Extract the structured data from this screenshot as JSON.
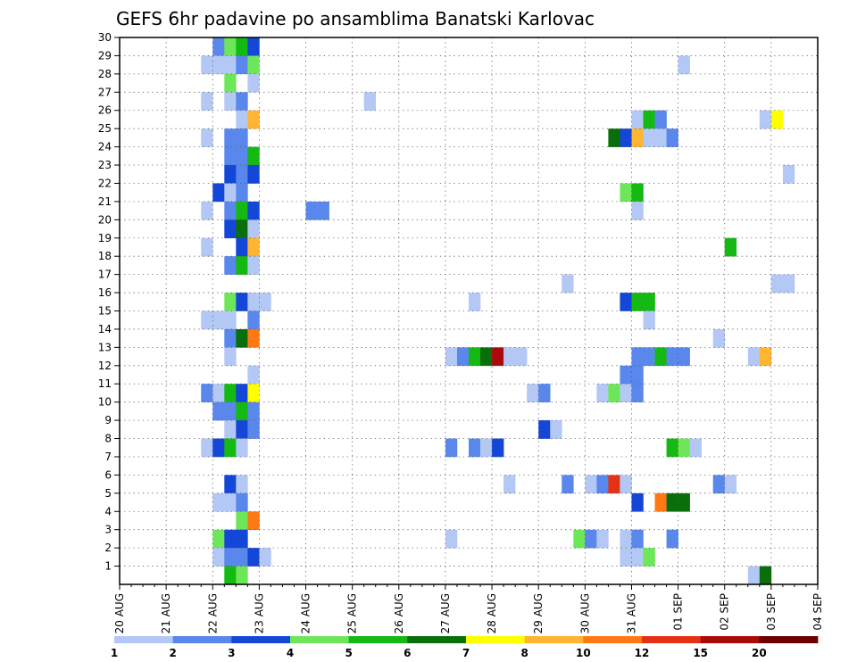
{
  "chart_data": {
    "type": "heatmap",
    "title": "GEFS 6hr padavine po ansamblima Banatski Karlovac",
    "xlabel": "",
    "ylabel": "",
    "x_tick_labels": [
      "20 AUG",
      "21 AUG",
      "22 AUG",
      "23 AUG",
      "24 AUG",
      "25 AUG",
      "26 AUG",
      "27 AUG",
      "28 AUG",
      "29 AUG",
      "30 AUG",
      "31 AUG",
      "01 SEP",
      "02 SEP",
      "03 SEP",
      "04 SEP"
    ],
    "y_tick_labels": [
      "1",
      "2",
      "3",
      "4",
      "5",
      "6",
      "7",
      "8",
      "9",
      "10",
      "11",
      "12",
      "13",
      "14",
      "15",
      "16",
      "17",
      "18",
      "19",
      "20",
      "21",
      "22",
      "23",
      "24",
      "25",
      "26",
      "27",
      "28",
      "29",
      "30"
    ],
    "x_steps_per_day": 4,
    "grid": true,
    "legend": "bottom",
    "color_levels": [
      {
        "label": "1",
        "color": "#b4c8f5"
      },
      {
        "label": "2",
        "color": "#5a87eb"
      },
      {
        "label": "3",
        "color": "#1446d7"
      },
      {
        "label": "4",
        "color": "#6ee65a"
      },
      {
        "label": "5",
        "color": "#14b914"
      },
      {
        "label": "6",
        "color": "#0a6e0a"
      },
      {
        "label": "7",
        "color": "#ffff00"
      },
      {
        "label": "8",
        "color": "#ffb432"
      },
      {
        "label": "10",
        "color": "#ff7814"
      },
      {
        "label": "12",
        "color": "#e63214"
      },
      {
        "label": "15",
        "color": "#aa0a0a"
      },
      {
        "label": "20",
        "color": "#6e0000"
      }
    ],
    "cells": [
      [
        30,
        8,
        1
      ],
      [
        30,
        9,
        3
      ],
      [
        30,
        10,
        4
      ],
      [
        30,
        11,
        2
      ],
      [
        29,
        7,
        0
      ],
      [
        29,
        8,
        0
      ],
      [
        29,
        9,
        0
      ],
      [
        29,
        10,
        1
      ],
      [
        29,
        11,
        3
      ],
      [
        29,
        48,
        0
      ],
      [
        28,
        9,
        3
      ],
      [
        28,
        11,
        0
      ],
      [
        27,
        7,
        0
      ],
      [
        27,
        9,
        0
      ],
      [
        27,
        10,
        1
      ],
      [
        27,
        21,
        0
      ],
      [
        26,
        10,
        0
      ],
      [
        26,
        11,
        7
      ],
      [
        26,
        44,
        0
      ],
      [
        26,
        45,
        4
      ],
      [
        26,
        46,
        1
      ],
      [
        26,
        55,
        0
      ],
      [
        26,
        56,
        6
      ],
      [
        25,
        7,
        0
      ],
      [
        25,
        9,
        1
      ],
      [
        25,
        10,
        1
      ],
      [
        25,
        42,
        5
      ],
      [
        25,
        43,
        2
      ],
      [
        25,
        44,
        7
      ],
      [
        25,
        45,
        0
      ],
      [
        25,
        46,
        0
      ],
      [
        25,
        47,
        1
      ],
      [
        24,
        9,
        1
      ],
      [
        24,
        10,
        1
      ],
      [
        24,
        11,
        4
      ],
      [
        23,
        9,
        2
      ],
      [
        23,
        10,
        1
      ],
      [
        23,
        11,
        2
      ],
      [
        23,
        57,
        0
      ],
      [
        22,
        8,
        2
      ],
      [
        22,
        9,
        0
      ],
      [
        22,
        10,
        1
      ],
      [
        22,
        43,
        3
      ],
      [
        22,
        44,
        4
      ],
      [
        21,
        7,
        0
      ],
      [
        21,
        9,
        1
      ],
      [
        21,
        10,
        4
      ],
      [
        21,
        11,
        2
      ],
      [
        21,
        16,
        1
      ],
      [
        21,
        17,
        1
      ],
      [
        21,
        44,
        0
      ],
      [
        20,
        9,
        2
      ],
      [
        20,
        10,
        5
      ],
      [
        20,
        11,
        0
      ],
      [
        19,
        7,
        0
      ],
      [
        19,
        10,
        2
      ],
      [
        19,
        11,
        7
      ],
      [
        19,
        52,
        4
      ],
      [
        18,
        9,
        1
      ],
      [
        18,
        10,
        4
      ],
      [
        18,
        11,
        0
      ],
      [
        17,
        38,
        0
      ],
      [
        17,
        56,
        0
      ],
      [
        17,
        57,
        0
      ],
      [
        16,
        9,
        3
      ],
      [
        16,
        10,
        2
      ],
      [
        16,
        11,
        0
      ],
      [
        16,
        12,
        0
      ],
      [
        16,
        30,
        0
      ],
      [
        16,
        43,
        2
      ],
      [
        16,
        44,
        4
      ],
      [
        16,
        45,
        4
      ],
      [
        15,
        7,
        0
      ],
      [
        15,
        8,
        0
      ],
      [
        15,
        9,
        0
      ],
      [
        15,
        11,
        1
      ],
      [
        15,
        45,
        0
      ],
      [
        14,
        9,
        1
      ],
      [
        14,
        10,
        5
      ],
      [
        14,
        11,
        8
      ],
      [
        14,
        51,
        0
      ],
      [
        13,
        9,
        0
      ],
      [
        13,
        28,
        0
      ],
      [
        13,
        29,
        1
      ],
      [
        13,
        30,
        4
      ],
      [
        13,
        31,
        5
      ],
      [
        13,
        32,
        10
      ],
      [
        13,
        33,
        0
      ],
      [
        13,
        34,
        0
      ],
      [
        13,
        44,
        1
      ],
      [
        13,
        45,
        1
      ],
      [
        13,
        46,
        4
      ],
      [
        13,
        47,
        1
      ],
      [
        13,
        48,
        1
      ],
      [
        13,
        54,
        0
      ],
      [
        13,
        55,
        7
      ],
      [
        12,
        11,
        0
      ],
      [
        12,
        43,
        1
      ],
      [
        12,
        44,
        1
      ],
      [
        11,
        7,
        1
      ],
      [
        11,
        8,
        0
      ],
      [
        11,
        9,
        4
      ],
      [
        11,
        10,
        2
      ],
      [
        11,
        11,
        6
      ],
      [
        11,
        35,
        0
      ],
      [
        11,
        36,
        1
      ],
      [
        11,
        41,
        0
      ],
      [
        11,
        42,
        3
      ],
      [
        11,
        43,
        0
      ],
      [
        11,
        44,
        1
      ],
      [
        10,
        8,
        1
      ],
      [
        10,
        9,
        1
      ],
      [
        10,
        10,
        4
      ],
      [
        10,
        11,
        1
      ],
      [
        9,
        9,
        0
      ],
      [
        9,
        10,
        2
      ],
      [
        9,
        11,
        1
      ],
      [
        9,
        36,
        2
      ],
      [
        9,
        37,
        0
      ],
      [
        8,
        7,
        0
      ],
      [
        8,
        8,
        2
      ],
      [
        8,
        9,
        4
      ],
      [
        8,
        10,
        0
      ],
      [
        8,
        28,
        1
      ],
      [
        8,
        30,
        1
      ],
      [
        8,
        31,
        0
      ],
      [
        8,
        32,
        2
      ],
      [
        8,
        47,
        4
      ],
      [
        8,
        48,
        3
      ],
      [
        8,
        49,
        0
      ],
      [
        6,
        9,
        2
      ],
      [
        6,
        10,
        0
      ],
      [
        6,
        33,
        0
      ],
      [
        6,
        38,
        1
      ],
      [
        6,
        40,
        0
      ],
      [
        6,
        41,
        1
      ],
      [
        6,
        42,
        9
      ],
      [
        6,
        43,
        0
      ],
      [
        6,
        51,
        1
      ],
      [
        6,
        52,
        0
      ],
      [
        5,
        8,
        0
      ],
      [
        5,
        9,
        0
      ],
      [
        5,
        10,
        1
      ],
      [
        5,
        44,
        2
      ],
      [
        5,
        46,
        8
      ],
      [
        5,
        47,
        5
      ],
      [
        5,
        48,
        5
      ],
      [
        4,
        10,
        3
      ],
      [
        4,
        11,
        8
      ],
      [
        3,
        8,
        3
      ],
      [
        3,
        9,
        2
      ],
      [
        3,
        10,
        2
      ],
      [
        3,
        28,
        0
      ],
      [
        3,
        39,
        3
      ],
      [
        3,
        40,
        1
      ],
      [
        3,
        41,
        0
      ],
      [
        3,
        43,
        0
      ],
      [
        3,
        44,
        1
      ],
      [
        3,
        47,
        1
      ],
      [
        2,
        8,
        0
      ],
      [
        2,
        9,
        1
      ],
      [
        2,
        10,
        1
      ],
      [
        2,
        11,
        2
      ],
      [
        2,
        12,
        0
      ],
      [
        2,
        43,
        0
      ],
      [
        2,
        44,
        0
      ],
      [
        2,
        45,
        3
      ],
      [
        1,
        9,
        4
      ],
      [
        1,
        10,
        3
      ],
      [
        1,
        54,
        0
      ],
      [
        1,
        55,
        5
      ]
    ]
  }
}
